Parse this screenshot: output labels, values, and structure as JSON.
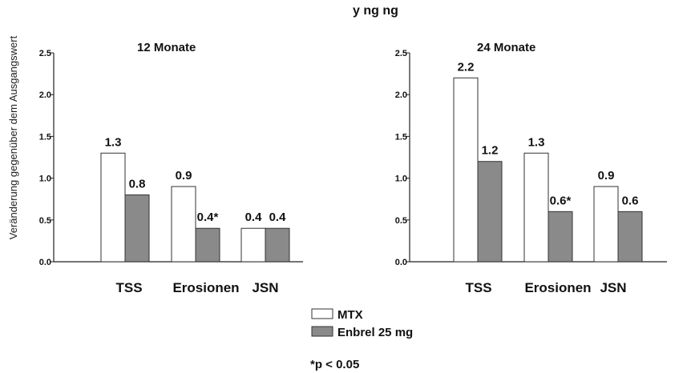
{
  "colors": {
    "mtx": "#ffffff",
    "enbrel": "#8a8a8a",
    "axis": "#222222",
    "bar_stroke": "#333333"
  },
  "header": {
    "title_fragment": "y ng ng"
  },
  "ylabel": "Veränderung gegenüber dem Ausgangswert",
  "legend": {
    "items": [
      {
        "label": "MTX"
      },
      {
        "label": "Enbrel 25 mg"
      }
    ],
    "placement": "bottom-center"
  },
  "footnote": "*p < 0.05",
  "chart_data": [
    {
      "type": "bar",
      "title": "12 Monate",
      "categories": [
        "TSS",
        "Erosionen",
        "JSN"
      ],
      "series": [
        {
          "name": "MTX",
          "values": [
            1.3,
            0.9,
            0.4
          ],
          "labels": [
            "1.3",
            "0.9",
            "0.4"
          ]
        },
        {
          "name": "Enbrel 25 mg",
          "values": [
            0.8,
            0.4,
            0.4
          ],
          "labels": [
            "0.8",
            "0.4*",
            "0.4"
          ]
        }
      ],
      "ylim": [
        0,
        2.5
      ],
      "yticks": [
        "0.0",
        "0.5",
        "1.0",
        "1.5",
        "2.0",
        "2.5"
      ],
      "grid": false
    },
    {
      "type": "bar",
      "title": "24 Monate",
      "categories": [
        "TSS",
        "Erosionen",
        "JSN"
      ],
      "series": [
        {
          "name": "MTX",
          "values": [
            2.2,
            1.3,
            0.9
          ],
          "labels": [
            "2.2",
            "1.3",
            "0.9"
          ]
        },
        {
          "name": "Enbrel 25 mg",
          "values": [
            1.2,
            0.6,
            0.6
          ],
          "labels": [
            "1.2",
            "0.6*",
            "0.6"
          ]
        }
      ],
      "ylim": [
        0,
        2.5
      ],
      "yticks": [
        "0.0",
        "0.5",
        "1.0",
        "1.5",
        "2.0",
        "2.5"
      ],
      "grid": false
    }
  ]
}
